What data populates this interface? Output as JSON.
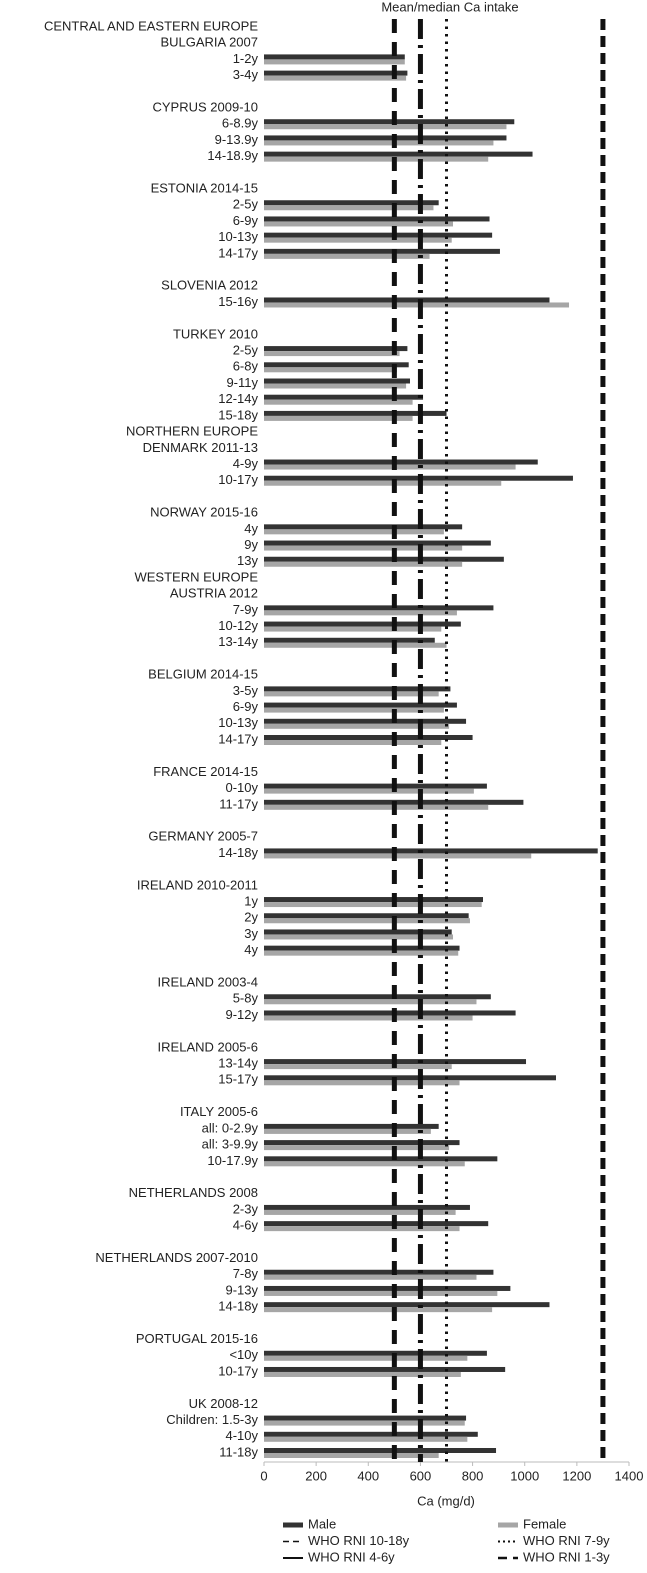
{
  "chart_data": {
    "type": "hbar",
    "title": "Mean/median Ca intake",
    "x_label": "Ca (mg/d)",
    "xlim": [
      0,
      1400
    ],
    "xticks": [
      0,
      200,
      400,
      600,
      800,
      1000,
      1200,
      1400
    ],
    "categories": [
      "CENTRAL AND EASTERN EUROPE",
      "BULGARIA 2007",
      "1-2y",
      "3-4y",
      null,
      "CYPRUS 2009-10",
      "6-8.9y",
      "9-13.9y",
      "14-18.9y",
      null,
      "ESTONIA 2014-15",
      "2-5y",
      "6-9y",
      "10-13y",
      "14-17y",
      null,
      "SLOVENIA 2012",
      "15-16y",
      null,
      "TURKEY 2010",
      "2-5y",
      "6-8y",
      "9-11y",
      "12-14y",
      "15-18y",
      "NORTHERN EUROPE",
      "DENMARK 2011-13",
      "4-9y",
      "10-17y",
      null,
      "NORWAY 2015-16",
      "4y",
      "9y",
      "13y",
      "WESTERN EUROPE",
      "AUSTRIA 2012",
      "7-9y",
      "10-12y",
      "13-14y",
      null,
      "BELGIUM 2014-15",
      "3-5y",
      "6-9y",
      "10-13y",
      "14-17y",
      null,
      "FRANCE 2014-15",
      "0-10y",
      "11-17y",
      null,
      "GERMANY 2005-7",
      "14-18y",
      null,
      "IRELAND 2010-2011",
      "1y",
      "2y",
      "3y",
      "4y",
      null,
      "IRELAND 2003-4",
      "5-8y",
      "9-12y",
      null,
      "IRELAND 2005-6",
      "13-14y",
      "15-17y",
      null,
      "ITALY 2005-6",
      "all: 0-2.9y",
      "all: 3-9.9y",
      "10-17.9y",
      null,
      "NETHERLANDS 2008",
      "2-3y",
      "4-6y",
      null,
      "NETHERLANDS 2007-2010",
      "7-8y",
      "9-13y",
      "14-18y",
      null,
      "PORTUGAL 2015-16",
      "<10y",
      "10-17y",
      null,
      "UK 2008-12",
      "Children: 1.5-3y",
      "4-10y",
      "11-18y"
    ],
    "series": [
      {
        "name": "Male",
        "color": "#333333",
        "values": [
          null,
          null,
          540,
          550,
          null,
          null,
          960,
          930,
          1030,
          null,
          null,
          670,
          865,
          875,
          905,
          null,
          null,
          1095,
          null,
          null,
          550,
          555,
          560,
          610,
          700,
          null,
          null,
          1050,
          1185,
          null,
          null,
          760,
          870,
          920,
          null,
          null,
          880,
          755,
          655,
          null,
          null,
          715,
          740,
          775,
          800,
          null,
          null,
          855,
          995,
          null,
          null,
          1280,
          null,
          null,
          840,
          785,
          720,
          750,
          null,
          null,
          870,
          965,
          null,
          null,
          1005,
          1120,
          null,
          null,
          670,
          750,
          895,
          null,
          null,
          790,
          860,
          null,
          null,
          880,
          945,
          1095,
          null,
          null,
          855,
          925,
          null,
          null,
          775,
          820,
          890
        ]
      },
      {
        "name": "Female",
        "color": "#a6a6a6",
        "values": [
          null,
          null,
          540,
          545,
          null,
          null,
          930,
          880,
          860,
          null,
          null,
          650,
          725,
          720,
          635,
          null,
          null,
          1170,
          null,
          null,
          520,
          510,
          545,
          570,
          570,
          null,
          null,
          965,
          910,
          null,
          null,
          690,
          760,
          760,
          null,
          null,
          740,
          680,
          700,
          null,
          null,
          670,
          690,
          710,
          680,
          null,
          null,
          805,
          860,
          null,
          null,
          1025,
          null,
          null,
          835,
          790,
          725,
          745,
          null,
          null,
          815,
          800,
          null,
          null,
          720,
          750,
          null,
          null,
          640,
          710,
          770,
          null,
          null,
          735,
          750,
          null,
          null,
          815,
          895,
          875,
          null,
          null,
          780,
          755,
          null,
          null,
          770,
          780,
          670
        ]
      }
    ],
    "reference_lines": [
      {
        "name": "WHO RNI 10-18y",
        "value": 1300,
        "dash": "dashed",
        "color": "#111111"
      },
      {
        "name": "WHO RNI 7-9y",
        "value": 700,
        "dash": "dotted",
        "color": "#111111"
      },
      {
        "name": "WHO RNI 4-6y",
        "value": 600,
        "dash": "dash-dot",
        "color": "#111111"
      },
      {
        "name": "WHO RNI 1-3y",
        "value": 500,
        "dash": "long-dash",
        "color": "#111111"
      }
    ]
  }
}
